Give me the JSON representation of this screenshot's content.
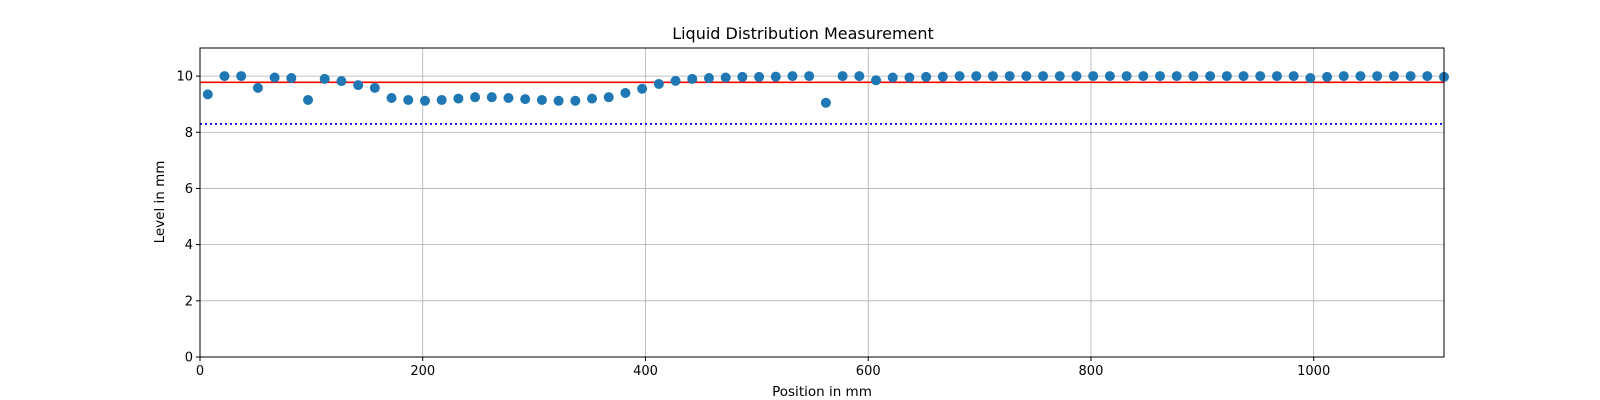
{
  "chart_data": {
    "type": "scatter",
    "title": "Liquid Distribution Measurement",
    "xlabel": "Position in mm",
    "ylabel": "Level in mm",
    "xlim": [
      0,
      1117
    ],
    "ylim": [
      0,
      11
    ],
    "grid": true,
    "xticks": [
      "0",
      "200",
      "400",
      "600",
      "800",
      "1000"
    ],
    "yticks": [
      "0",
      "2",
      "4",
      "6",
      "8",
      "10"
    ],
    "series": [
      {
        "marker_color": "#1f77b4",
        "x": [
          7,
          22,
          37,
          52,
          67,
          82,
          97,
          112,
          127,
          142,
          157,
          172,
          187,
          202,
          217,
          232,
          247,
          262,
          277,
          292,
          307,
          322,
          337,
          352,
          367,
          382,
          397,
          412,
          427,
          442,
          457,
          472,
          487,
          502,
          517,
          532,
          547,
          562,
          577,
          592,
          607,
          622,
          637,
          652,
          667,
          682,
          697,
          712,
          727,
          742,
          757,
          772,
          787,
          802,
          817,
          832,
          847,
          862,
          877,
          892,
          907,
          922,
          937,
          952,
          967,
          982,
          997,
          1012,
          1027,
          1042,
          1057,
          1072,
          1087,
          1102,
          1117
        ],
        "y": [
          9.35,
          10.0,
          10.0,
          9.58,
          9.95,
          9.93,
          9.15,
          9.9,
          9.82,
          9.68,
          9.58,
          9.22,
          9.15,
          9.12,
          9.15,
          9.2,
          9.25,
          9.25,
          9.22,
          9.18,
          9.15,
          9.12,
          9.12,
          9.2,
          9.25,
          9.4,
          9.55,
          9.72,
          9.83,
          9.9,
          9.93,
          9.95,
          9.97,
          9.97,
          9.98,
          10.0,
          10.0,
          9.05,
          10.0,
          10.0,
          9.85,
          9.95,
          9.95,
          9.97,
          9.98,
          10.0,
          10.0,
          10.0,
          10.0,
          10.0,
          10.0,
          10.0,
          10.0,
          10.0,
          10.0,
          10.0,
          10.0,
          10.0,
          10.0,
          10.0,
          10.0,
          10.0,
          10.0,
          10.0,
          10.0,
          10.0,
          9.93,
          9.97,
          10.0,
          10.0,
          10.0,
          10.0,
          10.0,
          10.0,
          9.97
        ]
      }
    ],
    "reference_lines": [
      {
        "y": 9.78,
        "color": "#ff0000",
        "style": "solid"
      },
      {
        "y": 8.3,
        "color": "#0000ff",
        "style": "dotted"
      }
    ]
  }
}
